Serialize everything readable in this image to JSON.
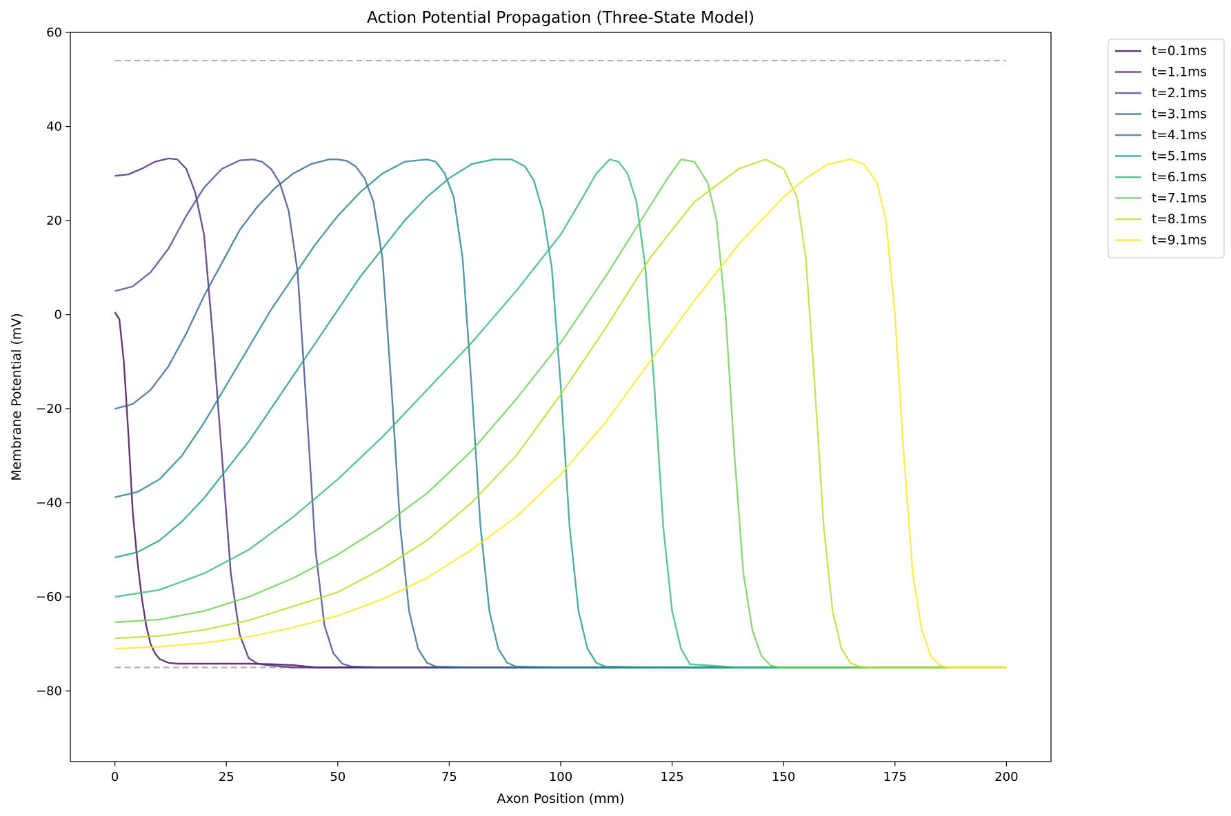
{
  "chart_data": {
    "type": "line",
    "title": "Action Potential Propagation (Three-State Model)",
    "xlabel": "Axon Position (mm)",
    "ylabel": "Membrane Potential (mV)",
    "xlim": [
      -10,
      210
    ],
    "ylim": [
      -95,
      60
    ],
    "xticks": [
      0,
      25,
      50,
      75,
      100,
      125,
      150,
      175,
      200
    ],
    "yticks": [
      -80,
      -60,
      -40,
      -20,
      0,
      20,
      40,
      60
    ],
    "grid": false,
    "legend_position": "outside top-right",
    "reference_lines": [
      {
        "y": 54,
        "style": "dashed",
        "color": "#b3b3b3"
      },
      {
        "y": -75,
        "style": "dashed",
        "color": "#b3b3b3"
      }
    ],
    "series": [
      {
        "name": "t=0.1ms",
        "color": "#440154",
        "x": [
          0,
          1,
          2,
          3,
          4,
          5,
          6,
          7,
          8,
          9,
          10,
          12,
          14,
          17,
          20,
          25,
          30,
          35,
          40,
          45,
          50,
          100,
          150,
          200
        ],
        "y": [
          0.5,
          -1,
          -10,
          -25,
          -42,
          -52,
          -60,
          -66,
          -70,
          -72,
          -73.2,
          -74,
          -74.2,
          -74.2,
          -74.2,
          -74.2,
          -74.2,
          -74.3,
          -74.5,
          -75,
          -75,
          -75,
          -75,
          -75
        ]
      },
      {
        "name": "t=1.1ms",
        "color": "#482878",
        "x": [
          0,
          3,
          6,
          9,
          12,
          14,
          16,
          18,
          20,
          22,
          24,
          26,
          28,
          30,
          32,
          34,
          40,
          50,
          100,
          150,
          200
        ],
        "y": [
          29.5,
          29.8,
          31,
          32.5,
          33.2,
          33,
          31,
          26,
          17,
          -5,
          -30,
          -55,
          -68,
          -73,
          -74.2,
          -74.5,
          -75,
          -75,
          -75,
          -75,
          -75
        ]
      },
      {
        "name": "t=2.1ms",
        "color": "#3e4989",
        "x": [
          0,
          4,
          8,
          12,
          16,
          20,
          24,
          28,
          31,
          33,
          35,
          37,
          39,
          41,
          43,
          45,
          47,
          49,
          51,
          53,
          60,
          100,
          150,
          200
        ],
        "y": [
          5,
          6,
          9,
          14,
          21,
          27,
          31,
          32.8,
          33,
          32.5,
          31,
          28,
          22,
          9,
          -20,
          -50,
          -66,
          -72,
          -74.2,
          -74.8,
          -75,
          -75,
          -75,
          -75
        ]
      },
      {
        "name": "t=3.1ms",
        "color": "#31688e",
        "x": [
          0,
          4,
          8,
          12,
          16,
          20,
          24,
          28,
          32,
          36,
          40,
          44,
          48,
          50,
          52,
          54,
          56,
          58,
          60,
          62,
          64,
          66,
          68,
          70,
          72,
          80,
          100,
          150,
          200
        ],
        "y": [
          -20,
          -19,
          -16,
          -11,
          -4,
          4,
          11,
          18,
          23,
          27,
          30,
          32,
          33,
          33,
          32.7,
          31.5,
          29,
          24,
          12,
          -15,
          -45,
          -63,
          -71,
          -74,
          -74.8,
          -75,
          -75,
          -75,
          -75
        ]
      },
      {
        "name": "t=4.1ms",
        "color": "#26828e",
        "x": [
          0,
          5,
          10,
          15,
          20,
          25,
          30,
          35,
          40,
          45,
          50,
          55,
          60,
          65,
          70,
          72,
          74,
          76,
          78,
          80,
          82,
          84,
          86,
          88,
          90,
          100,
          150,
          200
        ],
        "y": [
          -38.8,
          -37.7,
          -35,
          -30,
          -23,
          -15,
          -7,
          1,
          8,
          15,
          21,
          26,
          30,
          32.5,
          33,
          32.5,
          30,
          25,
          12,
          -15,
          -45,
          -63,
          -71,
          -74,
          -74.8,
          -75,
          -75,
          -75
        ]
      },
      {
        "name": "t=5.1ms",
        "color": "#1f9e89",
        "x": [
          0,
          5,
          10,
          15,
          20,
          25,
          30,
          35,
          40,
          45,
          50,
          55,
          60,
          65,
          70,
          75,
          80,
          85,
          89,
          92,
          94,
          96,
          98,
          100,
          102,
          104,
          106,
          108,
          110,
          120,
          150,
          200
        ],
        "y": [
          -51.6,
          -50.5,
          -48,
          -44,
          -39,
          -33,
          -27,
          -20,
          -13,
          -6,
          1,
          8,
          14,
          20,
          25,
          29,
          32,
          33,
          33,
          31.5,
          28.5,
          22,
          10,
          -15,
          -45,
          -63,
          -71,
          -74,
          -74.8,
          -75,
          -75,
          -75
        ]
      },
      {
        "name": "t=6.1ms",
        "color": "#35b779",
        "x": [
          0,
          10,
          20,
          30,
          40,
          50,
          60,
          70,
          80,
          90,
          100,
          105,
          108,
          111,
          113,
          115,
          117,
          119,
          121,
          123,
          125,
          127,
          129,
          140,
          150,
          200
        ],
        "y": [
          -60,
          -58.5,
          -55,
          -50,
          -43,
          -35,
          -26,
          -16,
          -6,
          5,
          17,
          25,
          30,
          33,
          32.5,
          30,
          24,
          10,
          -15,
          -45,
          -63,
          -71,
          -74.3,
          -75,
          -75,
          -75
        ]
      },
      {
        "name": "t=7.1ms",
        "color": "#6ece58",
        "x": [
          0,
          10,
          20,
          30,
          40,
          50,
          60,
          70,
          80,
          90,
          100,
          110,
          118,
          124,
          127,
          130,
          133,
          135,
          137,
          139,
          141,
          143,
          145,
          147,
          149,
          160,
          200
        ],
        "y": [
          -65.4,
          -64.8,
          -63,
          -60,
          -56,
          -51,
          -45,
          -38,
          -29,
          -18,
          -6,
          8,
          20,
          29,
          33,
          32.5,
          28,
          20,
          0,
          -30,
          -55,
          -67,
          -72.5,
          -74.5,
          -75,
          -75,
          -75
        ]
      },
      {
        "name": "t=8.1ms",
        "color": "#b5de2b",
        "x": [
          0,
          10,
          20,
          30,
          40,
          50,
          60,
          70,
          80,
          90,
          100,
          110,
          120,
          130,
          140,
          146,
          150,
          153,
          155,
          157,
          159,
          161,
          163,
          165,
          167,
          170,
          200
        ],
        "y": [
          -68.8,
          -68.3,
          -67,
          -65,
          -62,
          -59,
          -54,
          -48,
          -40,
          -30,
          -17,
          -3,
          12,
          24,
          31,
          33,
          31,
          25,
          12,
          -15,
          -45,
          -63,
          -71,
          -74,
          -74.8,
          -75,
          -75
        ]
      },
      {
        "name": "t=9.1ms",
        "color": "#fde725",
        "x": [
          0,
          10,
          20,
          30,
          40,
          50,
          60,
          70,
          80,
          90,
          100,
          110,
          120,
          130,
          140,
          150,
          155,
          160,
          165,
          168,
          171,
          173,
          175,
          177,
          179,
          181,
          183,
          185,
          187,
          190,
          200
        ],
        "y": [
          -71,
          -70.6,
          -69.8,
          -68.5,
          -66.5,
          -64,
          -60.5,
          -56,
          -50,
          -43,
          -34,
          -23,
          -10,
          3,
          15,
          25,
          29,
          32,
          33,
          32,
          28,
          20,
          0,
          -30,
          -55,
          -67,
          -72.5,
          -74.5,
          -75,
          -75,
          -75
        ]
      }
    ]
  }
}
